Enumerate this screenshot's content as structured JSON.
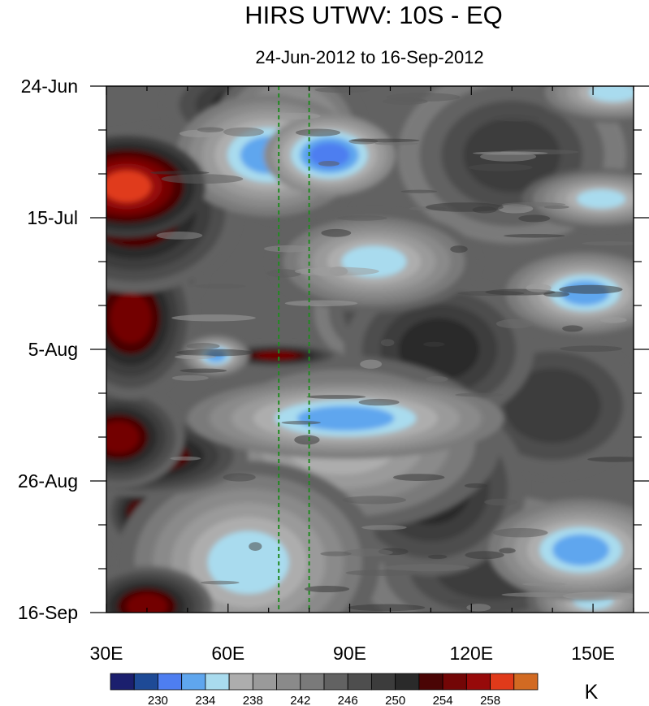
{
  "chart_data": {
    "type": "heatmap",
    "title": "HIRS UTWV: 10S - EQ",
    "subtitle": "24-Jun-2012 to 16-Sep-2012",
    "x_axis": {
      "range": [
        30,
        160
      ],
      "units": "degrees longitude",
      "ticks": [
        {
          "value": 30,
          "label": "30E"
        },
        {
          "value": 60,
          "label": "60E"
        },
        {
          "value": 90,
          "label": "90E"
        },
        {
          "value": 120,
          "label": "120E"
        },
        {
          "value": 150,
          "label": "150E"
        }
      ]
    },
    "y_axis": {
      "range": [
        "2012-06-24",
        "2012-09-16"
      ],
      "reversed": true,
      "ticks": [
        {
          "date": "2012-06-24",
          "label": "24-Jun"
        },
        {
          "date": "2012-07-15",
          "label": "15-Jul"
        },
        {
          "date": "2012-08-05",
          "label": "5-Aug"
        },
        {
          "date": "2012-08-26",
          "label": "26-Aug"
        },
        {
          "date": "2012-09-16",
          "label": "16-Sep"
        }
      ]
    },
    "reference_lines": [
      {
        "longitude": 72.5,
        "color": "#1f8a1f",
        "style": "dashed"
      },
      {
        "longitude": 80,
        "color": "#1f8a1f",
        "style": "dashed"
      }
    ],
    "colorbar": {
      "units_label": "K",
      "levels": [
        226,
        228,
        230,
        232,
        234,
        236,
        238,
        240,
        242,
        244,
        246,
        248,
        250,
        252,
        254,
        256,
        258,
        260
      ],
      "colors": [
        "#1b1f6e",
        "#1e4a96",
        "#4e7ef0",
        "#5fa6ee",
        "#a9dbee",
        "#adadad",
        "#9a9a9a",
        "#8a8a8a",
        "#7a7a7a",
        "#626262",
        "#4e4e4e",
        "#3c3c3c",
        "#2a2a2a",
        "#4a0505",
        "#730606",
        "#970a0a",
        "#e03a1a",
        "#d26a22"
      ],
      "tick_labels": [
        {
          "value": 230,
          "label": "230"
        },
        {
          "value": 234,
          "label": "234"
        },
        {
          "value": 238,
          "label": "238"
        },
        {
          "value": 242,
          "label": "242"
        },
        {
          "value": 246,
          "label": "246"
        },
        {
          "value": 250,
          "label": "250"
        },
        {
          "value": 254,
          "label": "254"
        },
        {
          "value": 258,
          "label": "258"
        }
      ]
    },
    "background_value_K": 244,
    "features": [
      {
        "lon": 35,
        "date": "2012-07-10",
        "dlon": 6,
        "ddays": 2.5,
        "value_K": 259
      },
      {
        "lon": 37,
        "date": "2012-07-14",
        "dlon": 8,
        "ddays": 4,
        "value_K": 255
      },
      {
        "lon": 42,
        "date": "2012-07-10",
        "dlon": 6,
        "ddays": 3,
        "value_K": 254
      },
      {
        "lon": 36,
        "date": "2012-07-31",
        "dlon": 5,
        "ddays": 4,
        "value_K": 255
      },
      {
        "lon": 38,
        "date": "2012-07-23",
        "dlon": 6,
        "ddays": 3,
        "value_K": 252
      },
      {
        "lon": 33,
        "date": "2012-08-19",
        "dlon": 5,
        "ddays": 2.5,
        "value_K": 254
      },
      {
        "lon": 39,
        "date": "2012-08-22",
        "dlon": 8,
        "ddays": 2,
        "value_K": 254
      },
      {
        "lon": 40,
        "date": "2012-09-15",
        "dlon": 5,
        "ddays": 2,
        "value_K": 254
      },
      {
        "lon": 38,
        "date": "2012-08-31",
        "dlon": 3,
        "ddays": 2,
        "value_K": 252
      },
      {
        "lon": 70,
        "date": "2012-07-05",
        "dlon": 7,
        "ddays": 3,
        "value_K": 232
      },
      {
        "lon": 75,
        "date": "2012-07-03",
        "dlon": 6,
        "ddays": 4,
        "value_K": 235
      },
      {
        "lon": 85,
        "date": "2012-07-05",
        "dlon": 5,
        "ddays": 2,
        "value_K": 231
      },
      {
        "lon": 96,
        "date": "2012-07-22",
        "dlon": 8,
        "ddays": 2.5,
        "value_K": 234
      },
      {
        "lon": 57,
        "date": "2012-08-06",
        "dlon": 2.5,
        "ddays": 1,
        "value_K": 232
      },
      {
        "lon": 72,
        "date": "2012-08-06",
        "dlon": 5,
        "ddays": 0.6,
        "value_K": 254
      },
      {
        "lon": 89,
        "date": "2012-08-16",
        "dlon": 12,
        "ddays": 2,
        "value_K": 232
      },
      {
        "lon": 88,
        "date": "2012-08-20",
        "dlon": 14,
        "ddays": 5,
        "value_K": 236
      },
      {
        "lon": 65,
        "date": "2012-09-08",
        "dlon": 10,
        "ddays": 5,
        "value_K": 235
      },
      {
        "lon": 147,
        "date": "2012-09-06",
        "dlon": 7,
        "ddays": 2.5,
        "value_K": 232
      },
      {
        "lon": 148,
        "date": "2012-07-27",
        "dlon": 6,
        "ddays": 2,
        "value_K": 233
      },
      {
        "lon": 152,
        "date": "2012-07-12",
        "dlon": 6,
        "ddays": 1.5,
        "value_K": 234
      },
      {
        "lon": 155,
        "date": "2012-06-25",
        "dlon": 6,
        "ddays": 1.5,
        "value_K": 235
      },
      {
        "lon": 150,
        "date": "2012-09-14",
        "dlon": 5,
        "ddays": 1.5,
        "value_K": 234
      },
      {
        "lon": 112,
        "date": "2012-08-05",
        "dlon": 10,
        "ddays": 5,
        "value_K": 250
      },
      {
        "lon": 130,
        "date": "2012-07-05",
        "dlon": 12,
        "ddays": 6,
        "value_K": 249
      },
      {
        "lon": 110,
        "date": "2012-08-27",
        "dlon": 10,
        "ddays": 6,
        "value_K": 250
      },
      {
        "lon": 125,
        "date": "2012-09-09",
        "dlon": 14,
        "ddays": 5,
        "value_K": 249
      },
      {
        "lon": 140,
        "date": "2012-08-14",
        "dlon": 12,
        "ddays": 6,
        "value_K": 248
      },
      {
        "lon": 100,
        "date": "2012-07-30",
        "dlon": 8,
        "ddays": 4,
        "value_K": 249
      },
      {
        "lon": 65,
        "date": "2012-06-27",
        "dlon": 9,
        "ddays": 3,
        "value_K": 250
      },
      {
        "lon": 52,
        "date": "2012-08-24",
        "dlon": 8,
        "ddays": 4,
        "value_K": 248
      }
    ]
  }
}
